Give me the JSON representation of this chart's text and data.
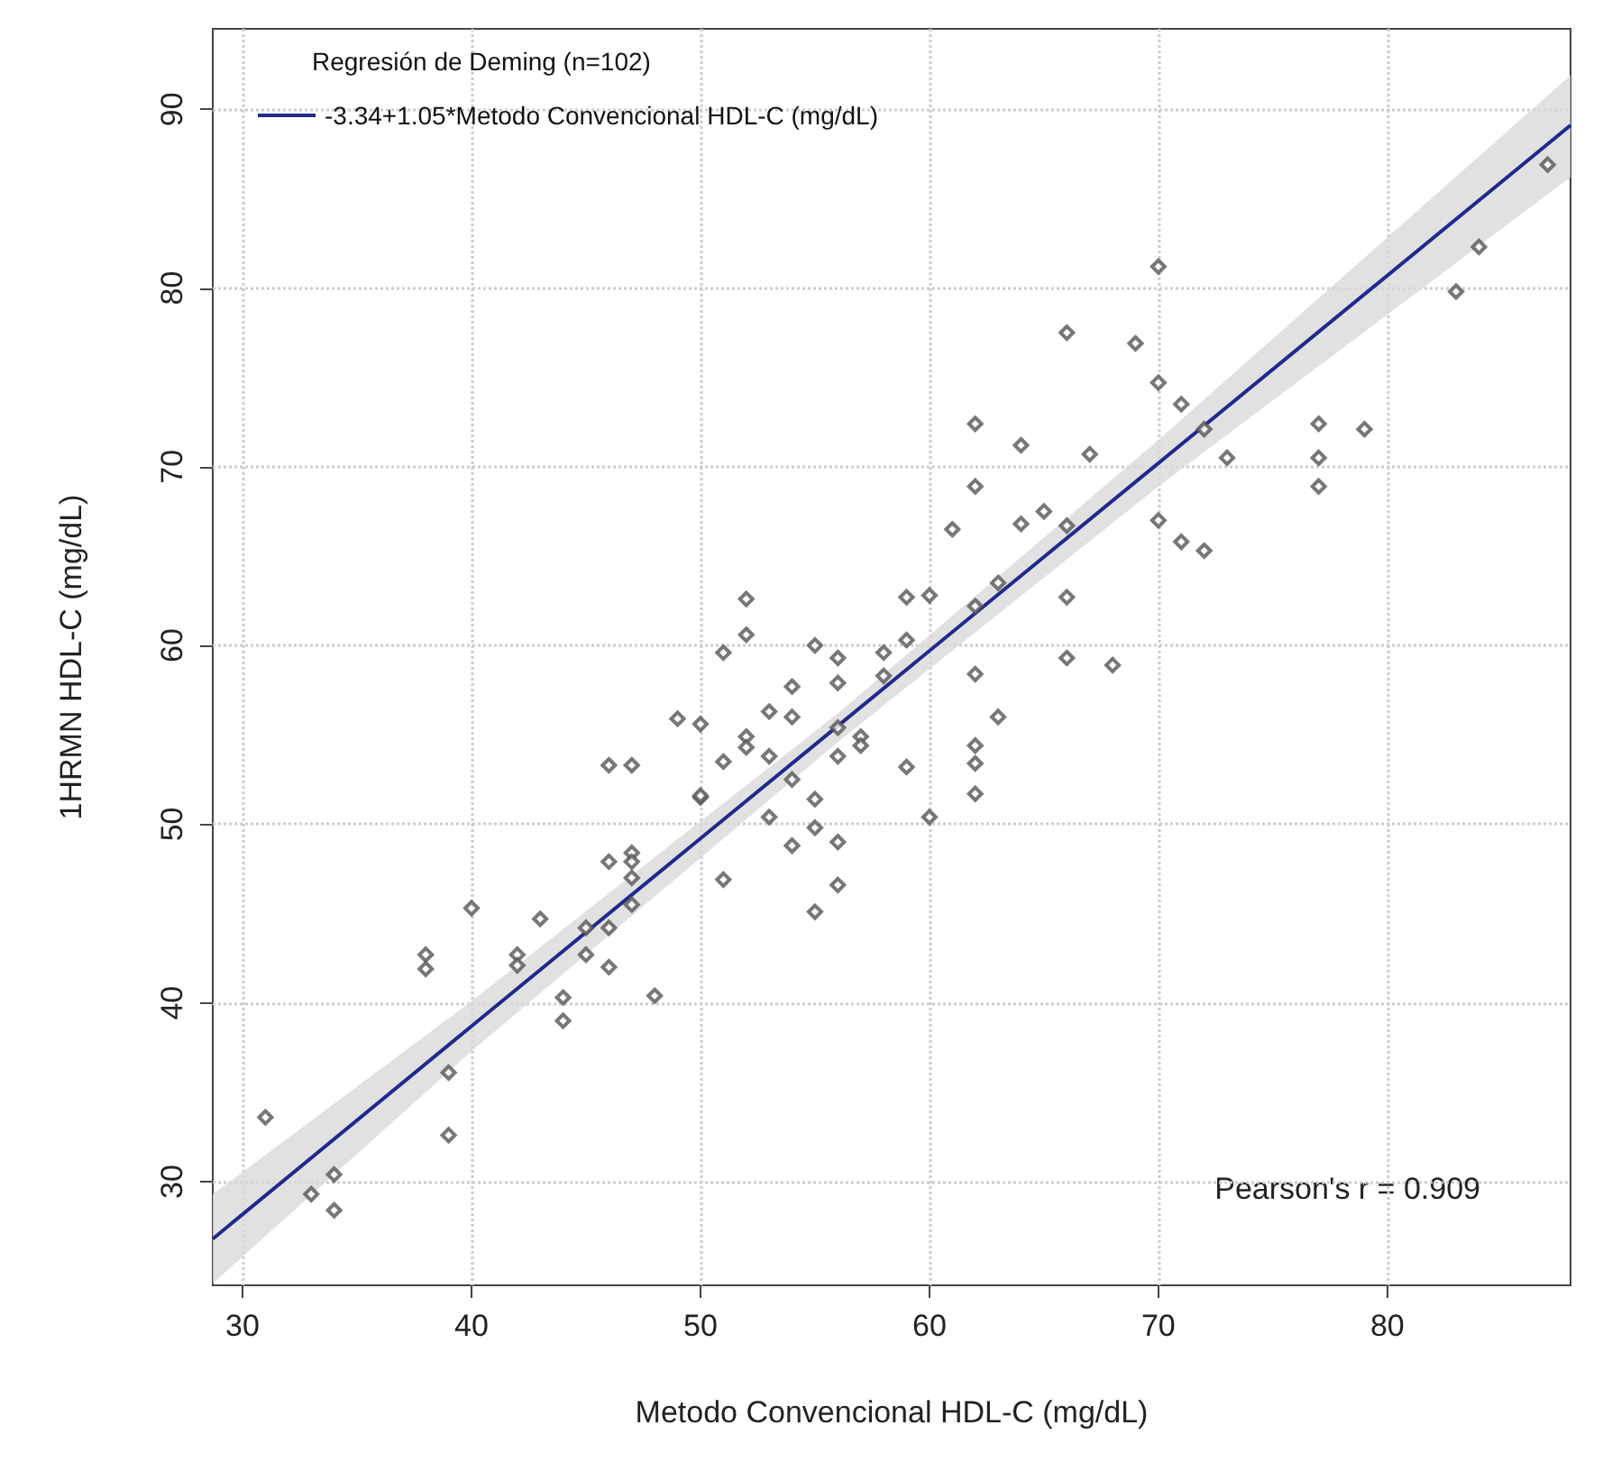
{
  "chart_data": {
    "type": "scatter",
    "xlabel": "Metodo Convencional HDL-C (mg/dL)",
    "ylabel": "1HRMN HDL-C (mg/dL)",
    "legend_title": "Regresión de Deming (n=102)",
    "annotations": [
      "Pearson's r = 0.909"
    ],
    "xlim": [
      28.7,
      88
    ],
    "ylim": [
      24.2,
      94.5
    ],
    "xticks": [
      30,
      40,
      50,
      60,
      70,
      80
    ],
    "yticks": [
      30,
      40,
      50,
      60,
      70,
      80,
      90
    ],
    "grid": true,
    "legend": "top left",
    "series": [
      {
        "color": "#555555",
        "marker": "diamond",
        "x": [
          31,
          33,
          34,
          34,
          39,
          39,
          40,
          38,
          38,
          42,
          42,
          43,
          44,
          44,
          45,
          45,
          46,
          46,
          46,
          46,
          47,
          47,
          47,
          47,
          47,
          48,
          49,
          50,
          50,
          51,
          51,
          52,
          52,
          55,
          56,
          58,
          59,
          60,
          59,
          58,
          56,
          54,
          54,
          53,
          52,
          52,
          53,
          54,
          56,
          56,
          57,
          57,
          59,
          60,
          50,
          53,
          55,
          55,
          54,
          56,
          51,
          55,
          56,
          66,
          69,
          70,
          71,
          72,
          73,
          77,
          77,
          77,
          79,
          83,
          62,
          64,
          67,
          62,
          61,
          64,
          65,
          66,
          70,
          71,
          72,
          62,
          63,
          66,
          66,
          68,
          62,
          63,
          62,
          62,
          62,
          70,
          84,
          87
        ],
        "values": [
          33.6,
          29.3,
          30.4,
          28.4,
          36.1,
          32.6,
          45.3,
          42.7,
          41.9,
          42.7,
          42.1,
          44.7,
          40.3,
          39,
          44.2,
          42.7,
          44.2,
          42,
          47.9,
          53.3,
          53.3,
          48.4,
          47.9,
          47,
          45.5,
          40.4,
          55.9,
          55.6,
          51.5,
          59.6,
          53.5,
          60.6,
          62.6,
          60,
          59.3,
          59.6,
          62.7,
          62.8,
          60.3,
          58.3,
          57.9,
          57.7,
          56,
          56.3,
          54.9,
          54.3,
          53.8,
          52.5,
          55.4,
          53.8,
          54.9,
          54.4,
          53.2,
          50.4,
          51.6,
          50.4,
          51.4,
          49.8,
          48.8,
          49,
          46.9,
          45.1,
          46.6,
          77.5,
          76.9,
          74.7,
          73.5,
          72.1,
          70.5,
          72.4,
          70.5,
          68.9,
          72.1,
          79.8,
          72.4,
          71.2,
          70.7,
          68.9,
          66.5,
          66.8,
          67.5,
          66.7,
          67,
          65.8,
          65.3,
          62.2,
          63.5,
          62.7,
          59.3,
          58.9,
          58.4,
          56,
          54.4,
          53.4,
          51.7,
          81.2,
          82.3,
          86.9
        ]
      },
      {
        "type": "line",
        "name": "-3.34+1.05*Metodo Convencional HDL-C (mg/dL)",
        "color": "#1f2a8c",
        "line_style": "solid",
        "marker": "none",
        "x": [
          28.7,
          40,
          56,
          70,
          88
        ],
        "values": [
          26.8,
          38.7,
          55.5,
          70.2,
          89.1
        ],
        "lower": [
          24.3,
          37.3,
          54.6,
          68.9,
          86.2
        ],
        "upper": [
          29.3,
          40.1,
          56.2,
          71.5,
          91.9
        ]
      }
    ]
  }
}
